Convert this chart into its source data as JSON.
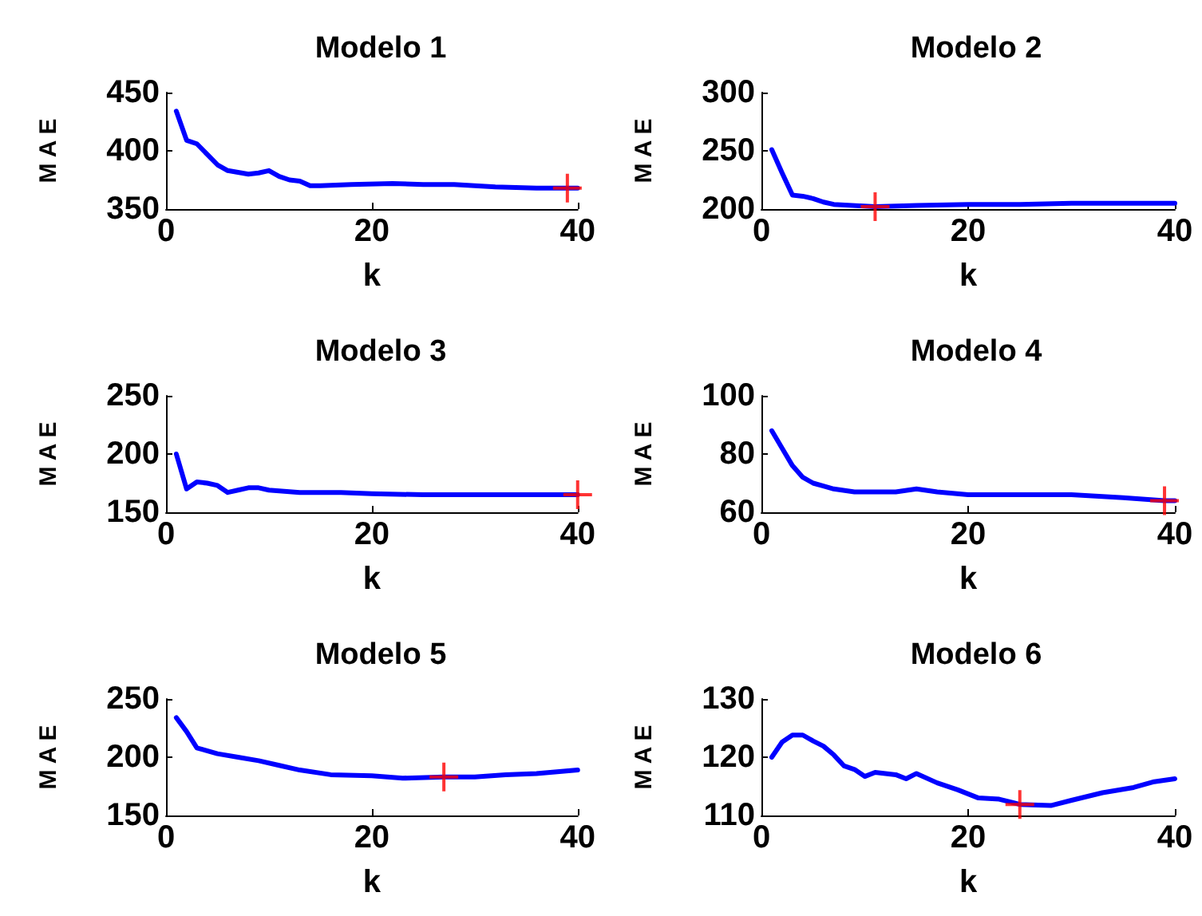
{
  "chart_data": [
    {
      "type": "line",
      "title": "Modelo 1",
      "xlabel": "k",
      "ylabel": "M A E",
      "xlim": [
        0,
        40
      ],
      "xticks": [
        0,
        20,
        40
      ],
      "ylim": [
        350,
        450
      ],
      "yticks": [
        350,
        400,
        450
      ],
      "grid": false,
      "series": [
        {
          "color": "#0000ff",
          "marker": "none",
          "x": [
            1,
            2,
            3,
            4,
            5,
            6,
            8,
            9,
            10,
            11,
            12,
            13,
            14,
            15,
            18,
            22,
            25,
            28,
            32,
            36,
            40
          ],
          "values": [
            434,
            409,
            406,
            397,
            388,
            383,
            380,
            381,
            383,
            378,
            375,
            374,
            370,
            370,
            371,
            372,
            371,
            371,
            369,
            368,
            368
          ]
        },
        {
          "type": "scatter",
          "color": "#ff0000",
          "marker": "cross",
          "x": [
            39
          ],
          "values": [
            368
          ]
        }
      ]
    },
    {
      "type": "line",
      "title": "Modelo 2",
      "xlabel": "k",
      "ylabel": "M A E",
      "xlim": [
        0,
        40
      ],
      "xticks": [
        0,
        20,
        40
      ],
      "ylim": [
        200,
        300
      ],
      "yticks": [
        200,
        250,
        300
      ],
      "grid": false,
      "series": [
        {
          "color": "#0000ff",
          "marker": "none",
          "x": [
            1,
            2,
            3,
            4,
            5,
            6,
            7,
            11,
            15,
            20,
            25,
            30,
            40
          ],
          "values": [
            251,
            231,
            212,
            211,
            209,
            206,
            204,
            202,
            203,
            204,
            204,
            205,
            205
          ]
        },
        {
          "type": "scatter",
          "color": "#ff0000",
          "marker": "cross",
          "x": [
            11
          ],
          "values": [
            202
          ]
        }
      ]
    },
    {
      "type": "line",
      "title": "Modelo 3",
      "xlabel": "k",
      "ylabel": "M A E",
      "xlim": [
        0,
        40
      ],
      "xticks": [
        0,
        20,
        40
      ],
      "ylim": [
        150,
        250
      ],
      "yticks": [
        150,
        200,
        250
      ],
      "grid": false,
      "series": [
        {
          "color": "#0000ff",
          "marker": "none",
          "x": [
            1,
            2,
            3,
            4,
            5,
            6,
            7,
            8,
            9,
            10,
            13,
            17,
            20,
            25,
            30,
            35,
            40
          ],
          "values": [
            200,
            170,
            176,
            175,
            173,
            167,
            169,
            171,
            171,
            169,
            167,
            167,
            166,
            165,
            165,
            165,
            165
          ]
        },
        {
          "type": "scatter",
          "color": "#ff0000",
          "marker": "cross",
          "x": [
            40
          ],
          "values": [
            165
          ]
        }
      ]
    },
    {
      "type": "line",
      "title": "Modelo 4",
      "xlabel": "k",
      "ylabel": "M A E",
      "xlim": [
        0,
        40
      ],
      "xticks": [
        0,
        20,
        40
      ],
      "ylim": [
        60,
        100
      ],
      "yticks": [
        60,
        80,
        100
      ],
      "grid": false,
      "series": [
        {
          "color": "#0000ff",
          "marker": "none",
          "x": [
            1,
            2,
            3,
            4,
            5,
            6,
            7,
            9,
            11,
            13,
            15,
            17,
            20,
            25,
            30,
            35,
            39,
            40
          ],
          "values": [
            88,
            82,
            76,
            72,
            70,
            69,
            68,
            67,
            67,
            67,
            68,
            67,
            66,
            66,
            66,
            65,
            64,
            64
          ]
        },
        {
          "type": "scatter",
          "color": "#ff0000",
          "marker": "cross",
          "x": [
            39
          ],
          "values": [
            64
          ]
        }
      ]
    },
    {
      "type": "line",
      "title": "Modelo 5",
      "xlabel": "k",
      "ylabel": "M A E",
      "xlim": [
        0,
        40
      ],
      "xticks": [
        0,
        20,
        40
      ],
      "ylim": [
        150,
        250
      ],
      "yticks": [
        150,
        200,
        250
      ],
      "grid": false,
      "series": [
        {
          "color": "#0000ff",
          "marker": "none",
          "x": [
            1,
            2,
            3,
            5,
            7,
            9,
            11,
            13,
            16,
            20,
            23,
            27,
            30,
            33,
            36,
            40
          ],
          "values": [
            234,
            222,
            208,
            203,
            200,
            197,
            193,
            189,
            185,
            184,
            182,
            183,
            183,
            185,
            186,
            189
          ]
        },
        {
          "type": "scatter",
          "color": "#ff0000",
          "marker": "cross",
          "x": [
            27
          ],
          "values": [
            183
          ]
        }
      ]
    },
    {
      "type": "line",
      "title": "Modelo 6",
      "xlabel": "k",
      "ylabel": "M A E",
      "xlim": [
        0,
        40
      ],
      "xticks": [
        0,
        20,
        40
      ],
      "ylim": [
        110,
        130
      ],
      "yticks": [
        110,
        120,
        130
      ],
      "grid": false,
      "series": [
        {
          "color": "#0000ff",
          "marker": "none",
          "x": [
            1,
            2,
            3,
            4,
            5,
            6,
            7,
            8,
            9,
            10,
            11,
            13,
            14,
            15,
            17,
            19,
            21,
            23,
            25,
            28,
            30,
            33,
            36,
            38,
            40
          ],
          "values": [
            120,
            122.6,
            123.8,
            123.8,
            122.8,
            121.9,
            120.4,
            118.5,
            117.9,
            116.7,
            117.4,
            117,
            116.3,
            117.2,
            115.6,
            114.4,
            113,
            112.8,
            111.9,
            111.7,
            112.6,
            113.9,
            114.8,
            115.8,
            116.3
          ]
        },
        {
          "type": "scatter",
          "color": "#ff0000",
          "marker": "cross",
          "x": [
            25
          ],
          "values": [
            111.9
          ]
        }
      ]
    }
  ]
}
